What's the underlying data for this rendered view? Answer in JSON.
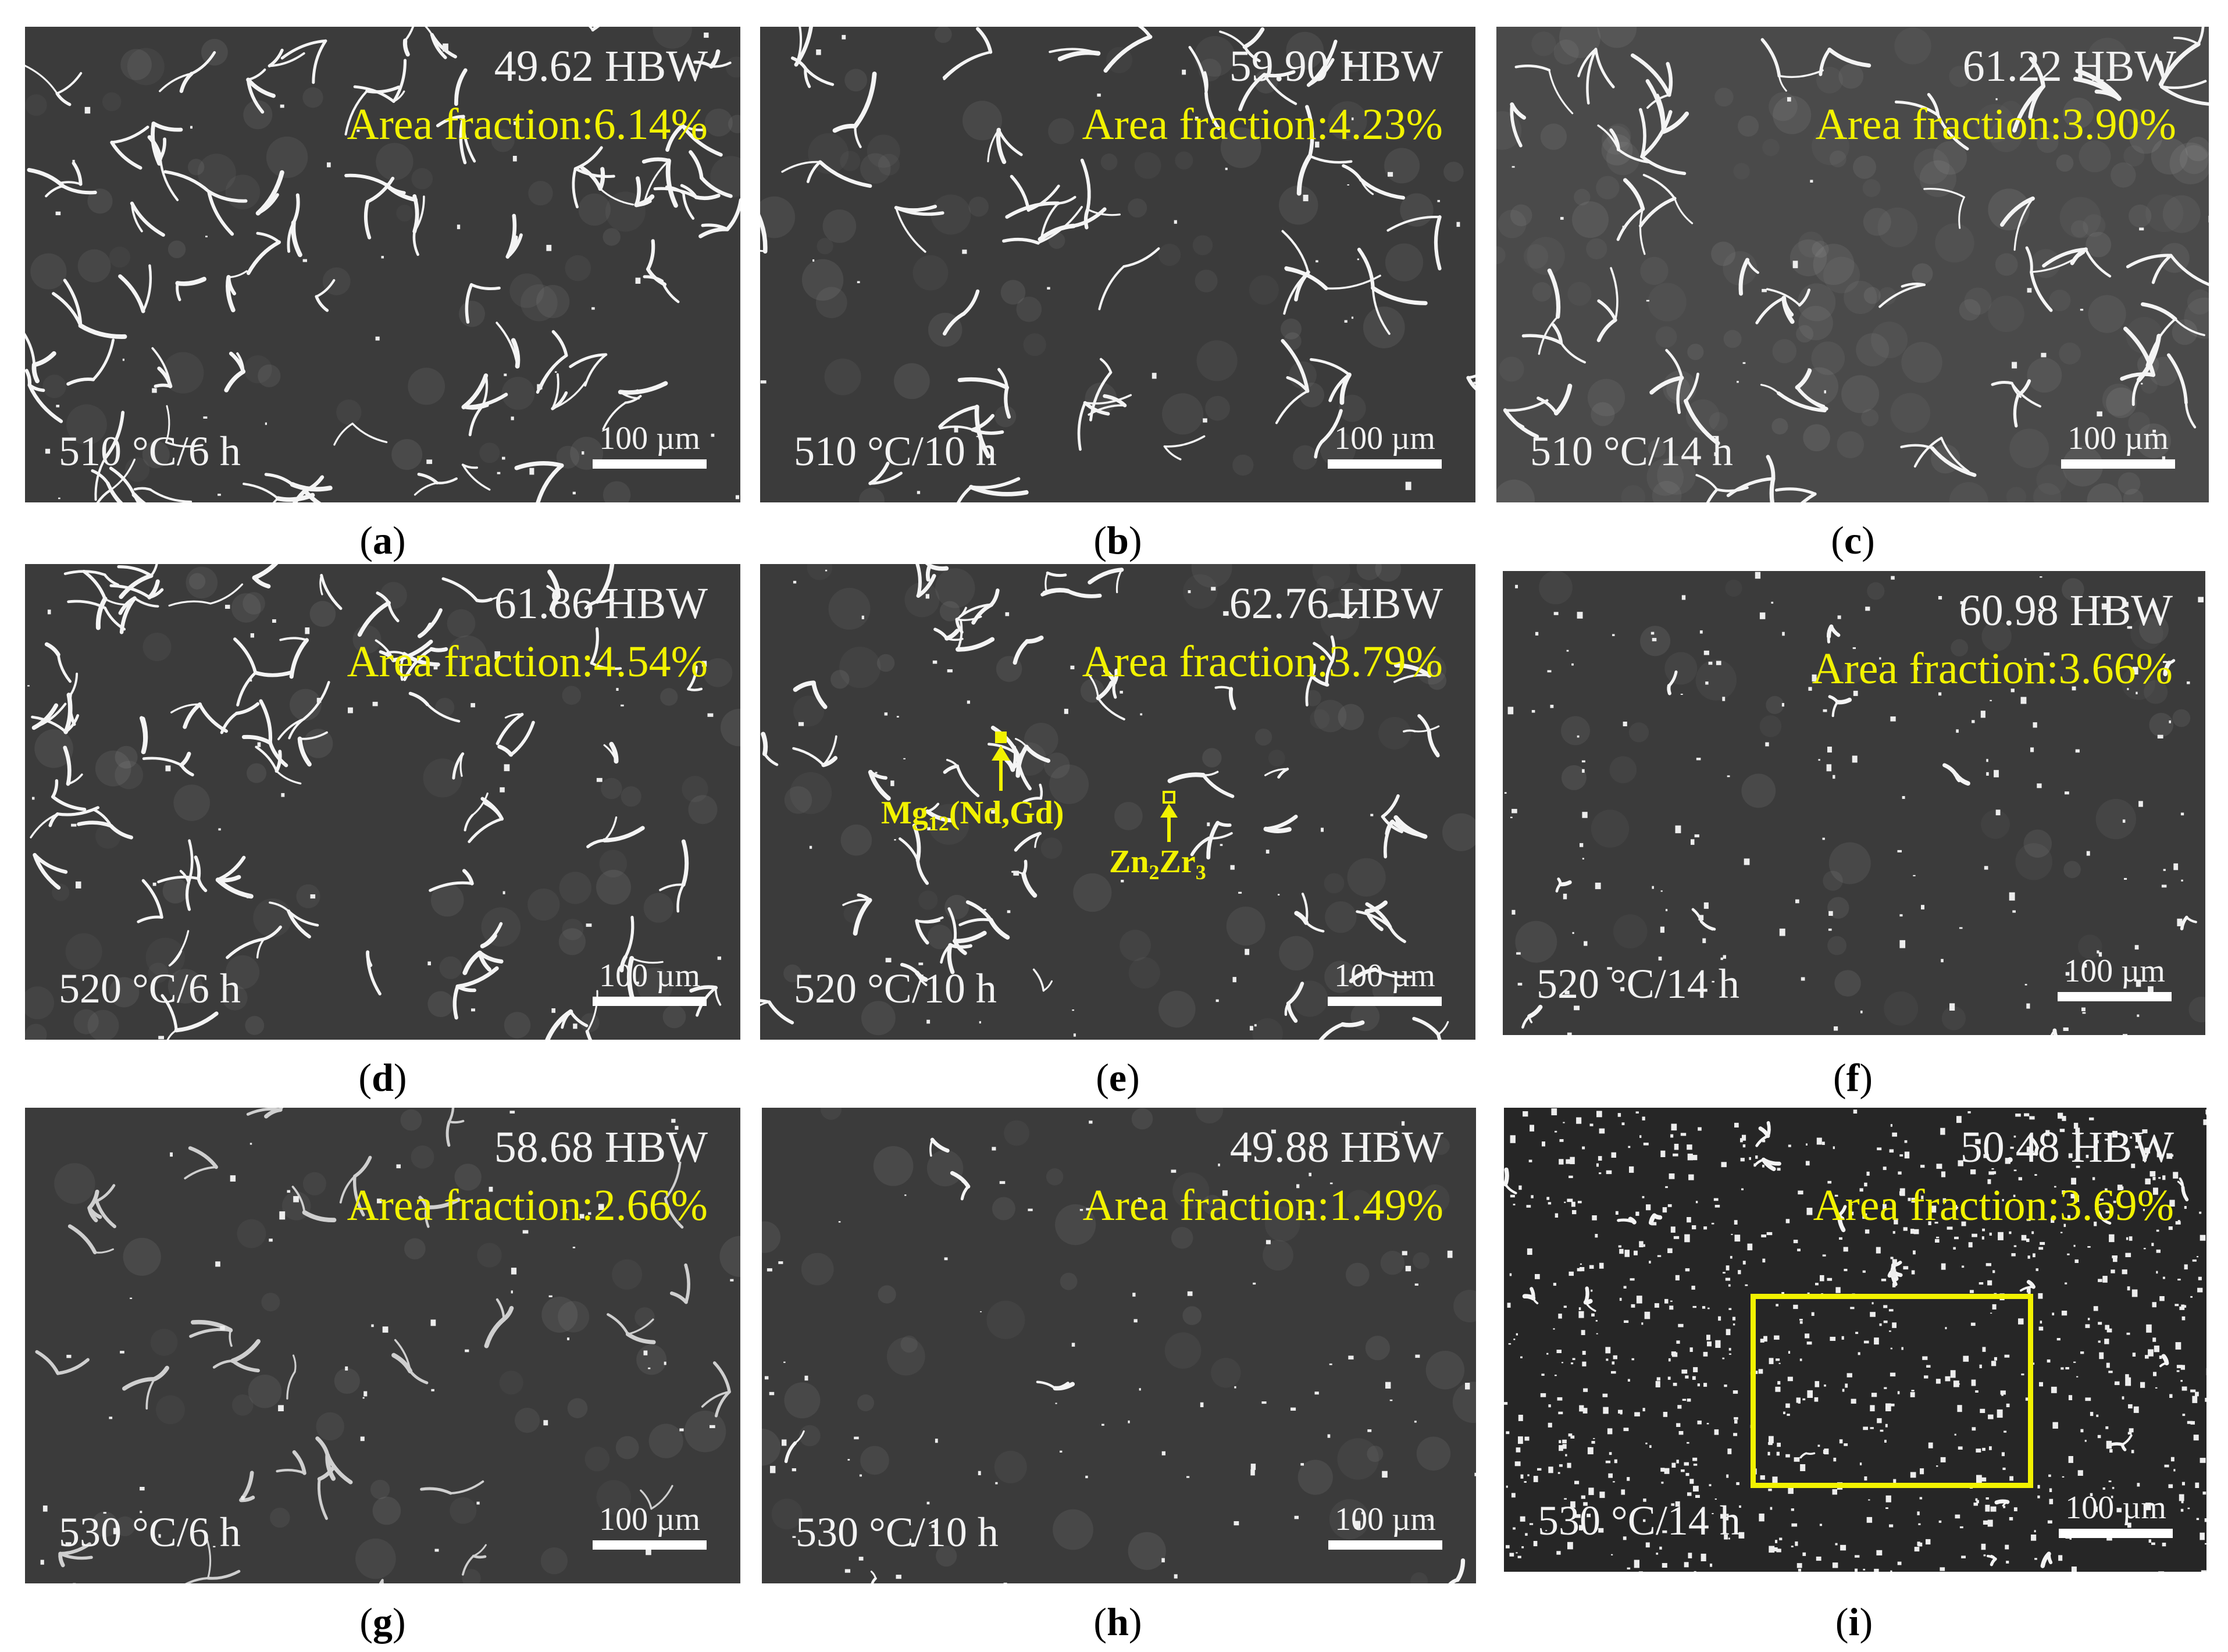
{
  "panels": [
    {
      "id": "a",
      "hardness": "49.62 HBW",
      "area_fraction": "Area fraction:6.14%",
      "condition": "510 °C/6 h",
      "scale": "100 µm",
      "caption": "a"
    },
    {
      "id": "b",
      "hardness": "59.90 HBW",
      "area_fraction": "Area fraction:4.23%",
      "condition": "510 °C/10 h",
      "scale": "100 µm",
      "caption": "b"
    },
    {
      "id": "c",
      "hardness": "61.22 HBW",
      "area_fraction": "Area fraction:3.90%",
      "condition": "510 °C/14 h",
      "scale": "100 µm",
      "caption": "c"
    },
    {
      "id": "d",
      "hardness": "61.86 HBW",
      "area_fraction": "Area fraction:4.54%",
      "condition": "520 °C/6 h",
      "scale": "100 µm",
      "caption": "d"
    },
    {
      "id": "e",
      "hardness": "62.76 HBW",
      "area_fraction": "Area fraction:3.79%",
      "condition": "520 °C/10 h",
      "scale": "100 µm",
      "caption": "e",
      "phase1": {
        "main": "Mg",
        "sub": "12",
        "rest": "(Nd,Gd)"
      },
      "phase2": {
        "a": "Zn",
        "asub": "2",
        "b": "Zr",
        "bsub": "3"
      }
    },
    {
      "id": "f",
      "hardness": "60.98 HBW",
      "area_fraction": "Area fraction:3.66%",
      "condition": "520 °C/14 h",
      "scale": "100 µm",
      "caption": "f"
    },
    {
      "id": "g",
      "hardness": "58.68 HBW",
      "area_fraction": "Area fraction:2.66%",
      "condition": "530 °C/6 h",
      "scale": "100 µm",
      "caption": "g"
    },
    {
      "id": "h",
      "hardness": "49.88 HBW",
      "area_fraction": "Area fraction:1.49%",
      "condition": "530 °C/10 h",
      "scale": "100 µm",
      "caption": "h"
    },
    {
      "id": "i",
      "hardness": "50.48 HBW",
      "area_fraction": "Area fraction:3.69%",
      "condition": "530 °C/14 h",
      "scale": "100 µm",
      "caption": "i"
    }
  ],
  "colors": {
    "label_yellow": "#f2f200",
    "text_white": "#f2f2f2",
    "matrix_gray": "#3b3b3b"
  }
}
